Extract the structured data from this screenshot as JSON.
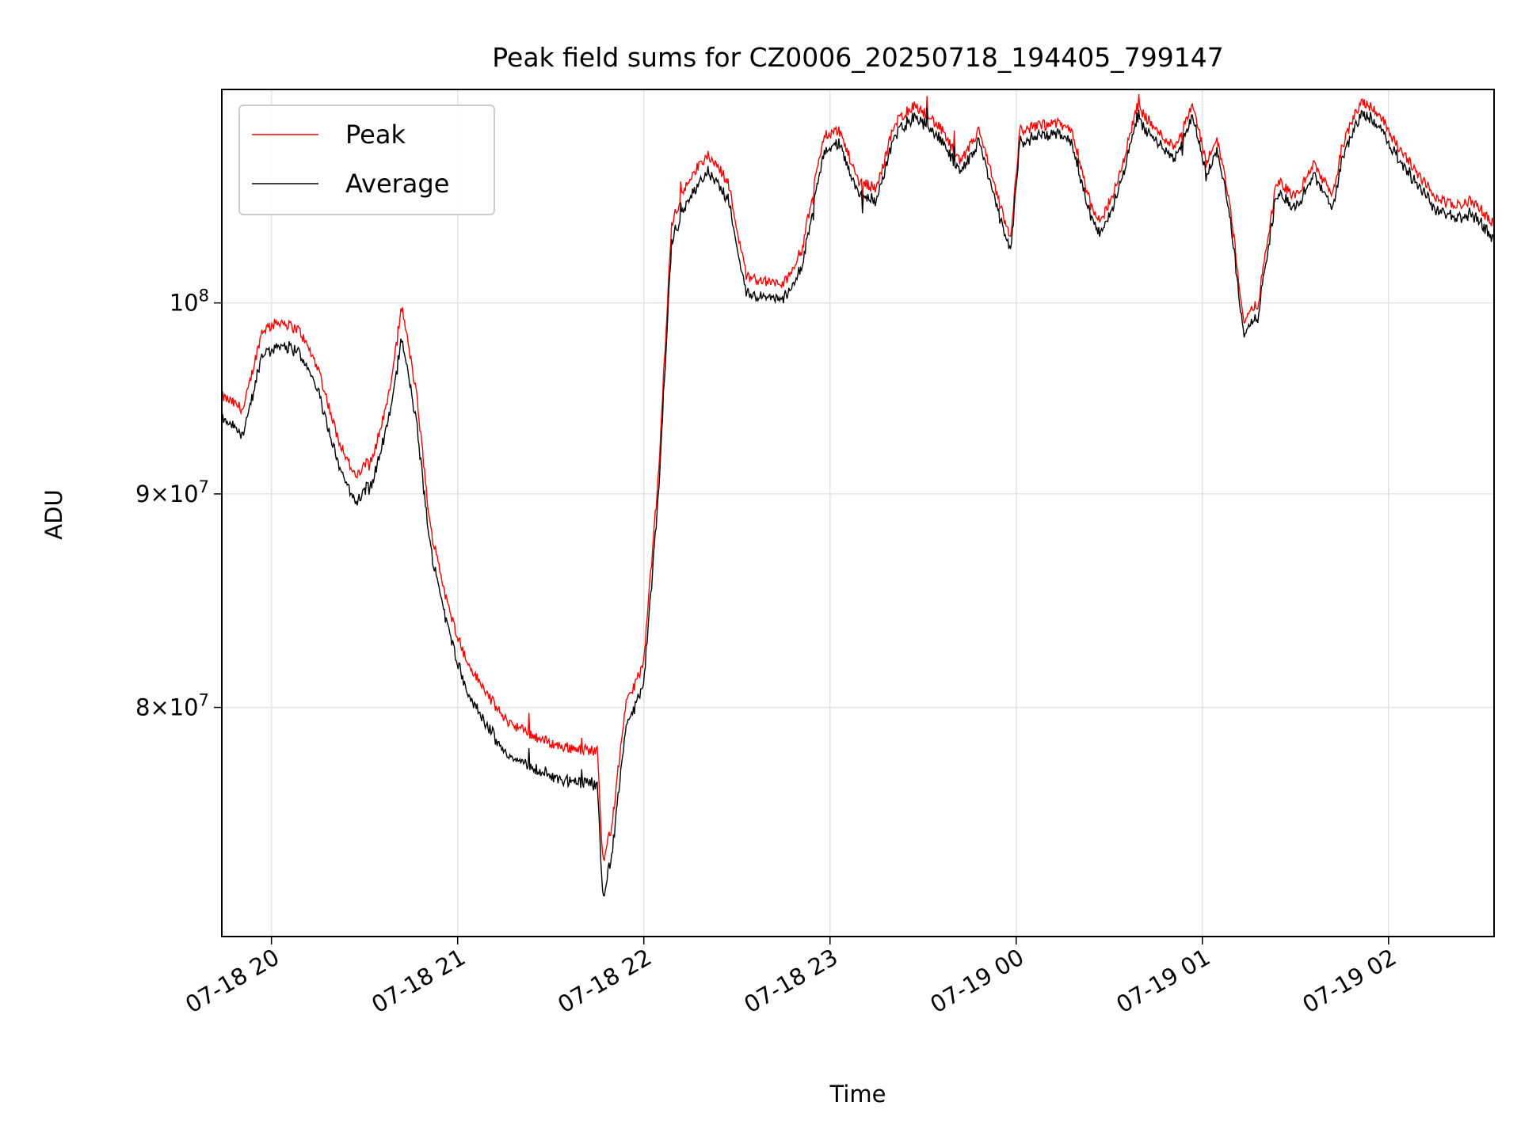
{
  "chart_data": {
    "type": "line",
    "title": "Peak field sums for CZ0006_20250718_194405_799147",
    "xlabel": "Time",
    "ylabel": "ADU",
    "x_range": [
      "07-18 19:44",
      "07-19 02:34"
    ],
    "x_ticks": [
      "07-18 20",
      "07-18 21",
      "07-18 22",
      "07-18 23",
      "07-19 00",
      "07-19 01",
      "07-19 02"
    ],
    "y_scale": "log",
    "ylim": [
      70500000,
      112500000
    ],
    "y_ticks": [
      {
        "value": 80000000,
        "base": "8",
        "exp": "7"
      },
      {
        "value": 90000000,
        "base": "9",
        "exp": "7"
      },
      {
        "value": 100000000,
        "base": "",
        "exp": "8"
      }
    ],
    "grid": true,
    "legend_position": "top-left",
    "series": [
      {
        "name": "Peak",
        "color": "#ff0000"
      },
      {
        "name": "Average",
        "color": "#000000"
      }
    ],
    "x_hours": [
      19.73,
      19.85,
      19.95,
      20.05,
      20.15,
      20.25,
      20.35,
      20.45,
      20.55,
      20.63,
      20.7,
      20.78,
      20.85,
      20.95,
      21.05,
      21.15,
      21.25,
      21.35,
      21.45,
      21.55,
      21.65,
      21.75,
      21.78,
      21.83,
      21.9,
      22.0,
      22.08,
      22.15,
      22.25,
      22.35,
      22.45,
      22.55,
      22.65,
      22.75,
      22.85,
      22.92,
      22.97,
      23.05,
      23.15,
      23.25,
      23.35,
      23.45,
      23.52,
      23.6,
      23.7,
      23.8,
      23.9,
      23.97,
      24.02,
      24.1,
      24.2,
      24.3,
      24.4,
      24.45,
      24.55,
      24.65,
      24.75,
      24.85,
      24.95,
      25.02,
      25.08,
      25.15,
      25.22,
      25.3,
      25.4,
      25.5,
      25.6,
      25.7,
      25.75,
      25.85,
      25.9,
      25.95,
      26.05,
      26.15,
      26.25,
      26.35,
      26.45,
      26.57
    ],
    "peak_values": [
      95000000,
      94300000,
      98500000,
      99000000,
      98500000,
      96500000,
      93000000,
      90800000,
      92000000,
      95000000,
      99800000,
      95000000,
      88500000,
      84500000,
      82000000,
      80700000,
      79500000,
      79000000,
      78600000,
      78300000,
      78200000,
      78100000,
      73500000,
      75000000,
      80000000,
      82000000,
      91000000,
      104500000,
      107300000,
      108500000,
      107000000,
      101500000,
      101200000,
      101000000,
      103000000,
      107000000,
      109700000,
      110000000,
      107000000,
      106500000,
      110500000,
      111500000,
      111000000,
      110000000,
      108000000,
      110000000,
      106000000,
      103500000,
      110000000,
      110200000,
      110500000,
      110000000,
      105500000,
      104500000,
      107000000,
      111500000,
      110000000,
      109000000,
      111500000,
      108000000,
      109500000,
      105500000,
      99000000,
      100000000,
      107000000,
      106000000,
      108000000,
      106000000,
      109000000,
      111800000,
      111500000,
      111000000,
      109000000,
      107500000,
      106000000,
      105500000,
      105800000,
      104400000
    ],
    "avg_values": [
      93800000,
      93000000,
      97200000,
      97700000,
      97300000,
      95300000,
      91800000,
      89500000,
      90800000,
      93800000,
      98000000,
      93500000,
      87500000,
      83500000,
      80700000,
      79300000,
      78000000,
      77600000,
      77200000,
      76900000,
      76800000,
      76700000,
      72000000,
      73800000,
      79000000,
      81000000,
      90000000,
      103500000,
      106200000,
      107500000,
      106000000,
      100500000,
      100300000,
      100200000,
      102000000,
      106000000,
      108800000,
      109200000,
      106200000,
      105800000,
      109800000,
      110800000,
      110300000,
      109300000,
      107300000,
      109300000,
      105200000,
      102800000,
      109300000,
      109500000,
      109800000,
      109300000,
      104800000,
      103800000,
      106300000,
      110800000,
      109300000,
      108300000,
      110800000,
      107300000,
      108800000,
      104800000,
      98300000,
      99300000,
      106300000,
      105300000,
      107300000,
      105300000,
      108300000,
      111000000,
      110800000,
      110300000,
      108300000,
      106800000,
      105300000,
      104800000,
      105000000,
      103600000
    ]
  }
}
